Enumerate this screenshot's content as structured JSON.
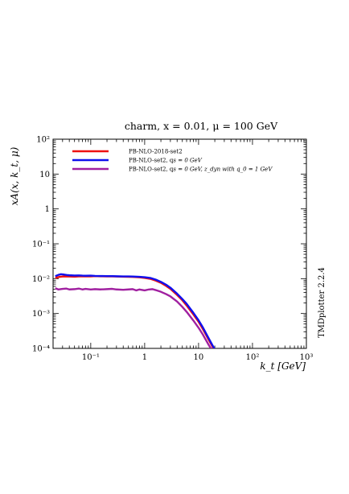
{
  "chart_data": {
    "type": "line",
    "title": "charm, x = 0.01, μ = 100 GeV",
    "xlabel": "k_t [GeV]",
    "ylabel": "xA(x, k_t, μ)",
    "xscale": "log",
    "yscale": "log",
    "xlim": [
      0.02,
      1000
    ],
    "ylim": [
      0.0001,
      100
    ],
    "grid": false,
    "legend_position": "top-left",
    "x_ticks": [
      {
        "value": 0.1,
        "label": "10⁻¹"
      },
      {
        "value": 1,
        "label": "1"
      },
      {
        "value": 10,
        "label": "10"
      },
      {
        "value": 100,
        "label": "10²"
      },
      {
        "value": 1000,
        "label": "10³"
      }
    ],
    "y_ticks": [
      {
        "value": 0.0001,
        "label": "10⁻⁴"
      },
      {
        "value": 0.001,
        "label": "10⁻³"
      },
      {
        "value": 0.01,
        "label": "10⁻²"
      },
      {
        "value": 0.1,
        "label": "10⁻¹"
      },
      {
        "value": 1,
        "label": "1"
      },
      {
        "value": 10,
        "label": "10"
      },
      {
        "value": 100,
        "label": "10²"
      }
    ],
    "series": [
      {
        "name": "PB-NLO-2018-set2",
        "color": "#ee1111",
        "x": [
          0.022,
          0.026,
          0.03,
          0.035,
          0.04,
          0.05,
          0.06,
          0.07,
          0.08,
          0.1,
          0.12,
          0.15,
          0.2,
          0.25,
          0.3,
          0.4,
          0.5,
          0.6,
          0.8,
          1.0,
          1.3,
          1.6,
          2.0,
          2.5,
          3.0,
          4.0,
          5.0,
          6.0,
          8.0,
          10,
          12,
          15,
          18,
          20
        ],
        "y": [
          0.0105,
          0.0112,
          0.0115,
          0.0116,
          0.0115,
          0.0114,
          0.0116,
          0.0117,
          0.0116,
          0.0116,
          0.0118,
          0.0117,
          0.0116,
          0.0116,
          0.0115,
          0.0114,
          0.0113,
          0.0112,
          0.0109,
          0.0105,
          0.0098,
          0.0088,
          0.0076,
          0.0062,
          0.0051,
          0.0034,
          0.0024,
          0.0017,
          0.00094,
          0.00058,
          0.00036,
          0.00019,
          0.000115,
          8.5e-05
        ]
      },
      {
        "name": "PB-NLO-set2, q_s = 0 GeV",
        "color": "#1010ee",
        "x": [
          0.022,
          0.025,
          0.028,
          0.032,
          0.036,
          0.04,
          0.05,
          0.06,
          0.07,
          0.08,
          0.1,
          0.12,
          0.15,
          0.2,
          0.25,
          0.3,
          0.4,
          0.5,
          0.6,
          0.8,
          1.0,
          1.3,
          1.6,
          2.0,
          2.5,
          3.0,
          4.0,
          5.0,
          6.0,
          8.0,
          10,
          12,
          15,
          18,
          20
        ],
        "y": [
          0.0118,
          0.0128,
          0.0134,
          0.0131,
          0.0127,
          0.0125,
          0.0123,
          0.0124,
          0.0122,
          0.0121,
          0.0122,
          0.012,
          0.0119,
          0.0118,
          0.0118,
          0.0117,
          0.0116,
          0.0116,
          0.0115,
          0.0113,
          0.011,
          0.0104,
          0.0094,
          0.0081,
          0.0067,
          0.0055,
          0.0037,
          0.0026,
          0.0019,
          0.00105,
          0.00064,
          0.0004,
          0.00021,
          0.000125,
          9.2e-05
        ]
      },
      {
        "name": "PB-NLO-set2, q_s = 0 GeV, z_dyn with q_0 = 1 GeV",
        "color": "#a020a0",
        "x": [
          0.022,
          0.025,
          0.03,
          0.035,
          0.04,
          0.05,
          0.06,
          0.07,
          0.08,
          0.1,
          0.12,
          0.15,
          0.2,
          0.25,
          0.3,
          0.4,
          0.5,
          0.6,
          0.7,
          0.8,
          1.0,
          1.2,
          1.4,
          1.6,
          2.0,
          2.5,
          3.0,
          4.0,
          5.0,
          6.0,
          8.0,
          10,
          12,
          15,
          18
        ],
        "y": [
          0.0053,
          0.0049,
          0.0051,
          0.0052,
          0.0049,
          0.005,
          0.0052,
          0.0049,
          0.0051,
          0.0049,
          0.005,
          0.0049,
          0.005,
          0.0051,
          0.0049,
          0.0048,
          0.0049,
          0.005,
          0.0046,
          0.0049,
          0.0046,
          0.0049,
          0.005,
          0.0047,
          0.0042,
          0.0036,
          0.0031,
          0.0022,
          0.00155,
          0.00112,
          0.00063,
          0.00039,
          0.00025,
          0.000135,
          8.5e-05
        ]
      }
    ],
    "legend": [
      {
        "label_main": "PB-NLO-2018-set2",
        "label_extra": ""
      },
      {
        "label_main": "PB-NLO-set2, q",
        "label_extra": "s = 0 GeV"
      },
      {
        "label_main": "PB-NLO-set2, q",
        "label_extra": "s = 0 GeV, z_dyn with q_0 = 1 GeV"
      }
    ]
  },
  "side_label": "TMDplotter 2.2.4"
}
